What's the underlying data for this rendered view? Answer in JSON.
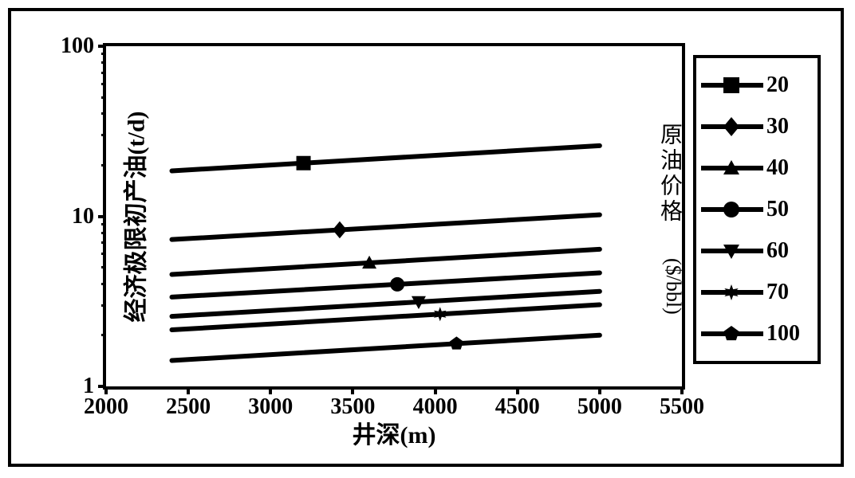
{
  "chart": {
    "type": "line-log",
    "background_color": "#ffffff",
    "border_color": "#000000",
    "line_color": "#000000",
    "line_width": 6,
    "marker_size": 18,
    "x": {
      "label": "井深(m)",
      "min": 2000,
      "max": 5500,
      "ticks": [
        2000,
        2500,
        3000,
        3500,
        4000,
        4500,
        5000,
        5500
      ],
      "data_min": 2400,
      "data_max": 5000,
      "label_fontsize": 30
    },
    "y": {
      "label": "经济极限初产油(t/d)",
      "scale": "log",
      "min": 1,
      "max": 100,
      "ticks": [
        1,
        10,
        100
      ],
      "label_fontsize": 30
    },
    "series": [
      {
        "name": "20",
        "marker": "square",
        "y_at_xmin": 18.5,
        "y_at_xmax": 26.0,
        "marker_x": 3200
      },
      {
        "name": "30",
        "marker": "diamond",
        "y_at_xmin": 7.3,
        "y_at_xmax": 10.2,
        "marker_x": 3420
      },
      {
        "name": "40",
        "marker": "triangle-up",
        "y_at_xmin": 4.55,
        "y_at_xmax": 6.4,
        "marker_x": 3600
      },
      {
        "name": "50",
        "marker": "circle",
        "y_at_xmin": 3.35,
        "y_at_xmax": 4.65,
        "marker_x": 3770
      },
      {
        "name": "60",
        "marker": "triangle-down",
        "y_at_xmin": 2.58,
        "y_at_xmax": 3.62,
        "marker_x": 3900
      },
      {
        "name": "70",
        "marker": "star6",
        "y_at_xmin": 2.15,
        "y_at_xmax": 3.02,
        "marker_x": 4030
      },
      {
        "name": "100",
        "marker": "pentagon",
        "y_at_xmin": 1.42,
        "y_at_xmax": 2.0,
        "marker_x": 4130
      }
    ],
    "legend": {
      "title_main": "原油价格",
      "title_sub": "($/bbl)",
      "fontsize": 28
    }
  }
}
